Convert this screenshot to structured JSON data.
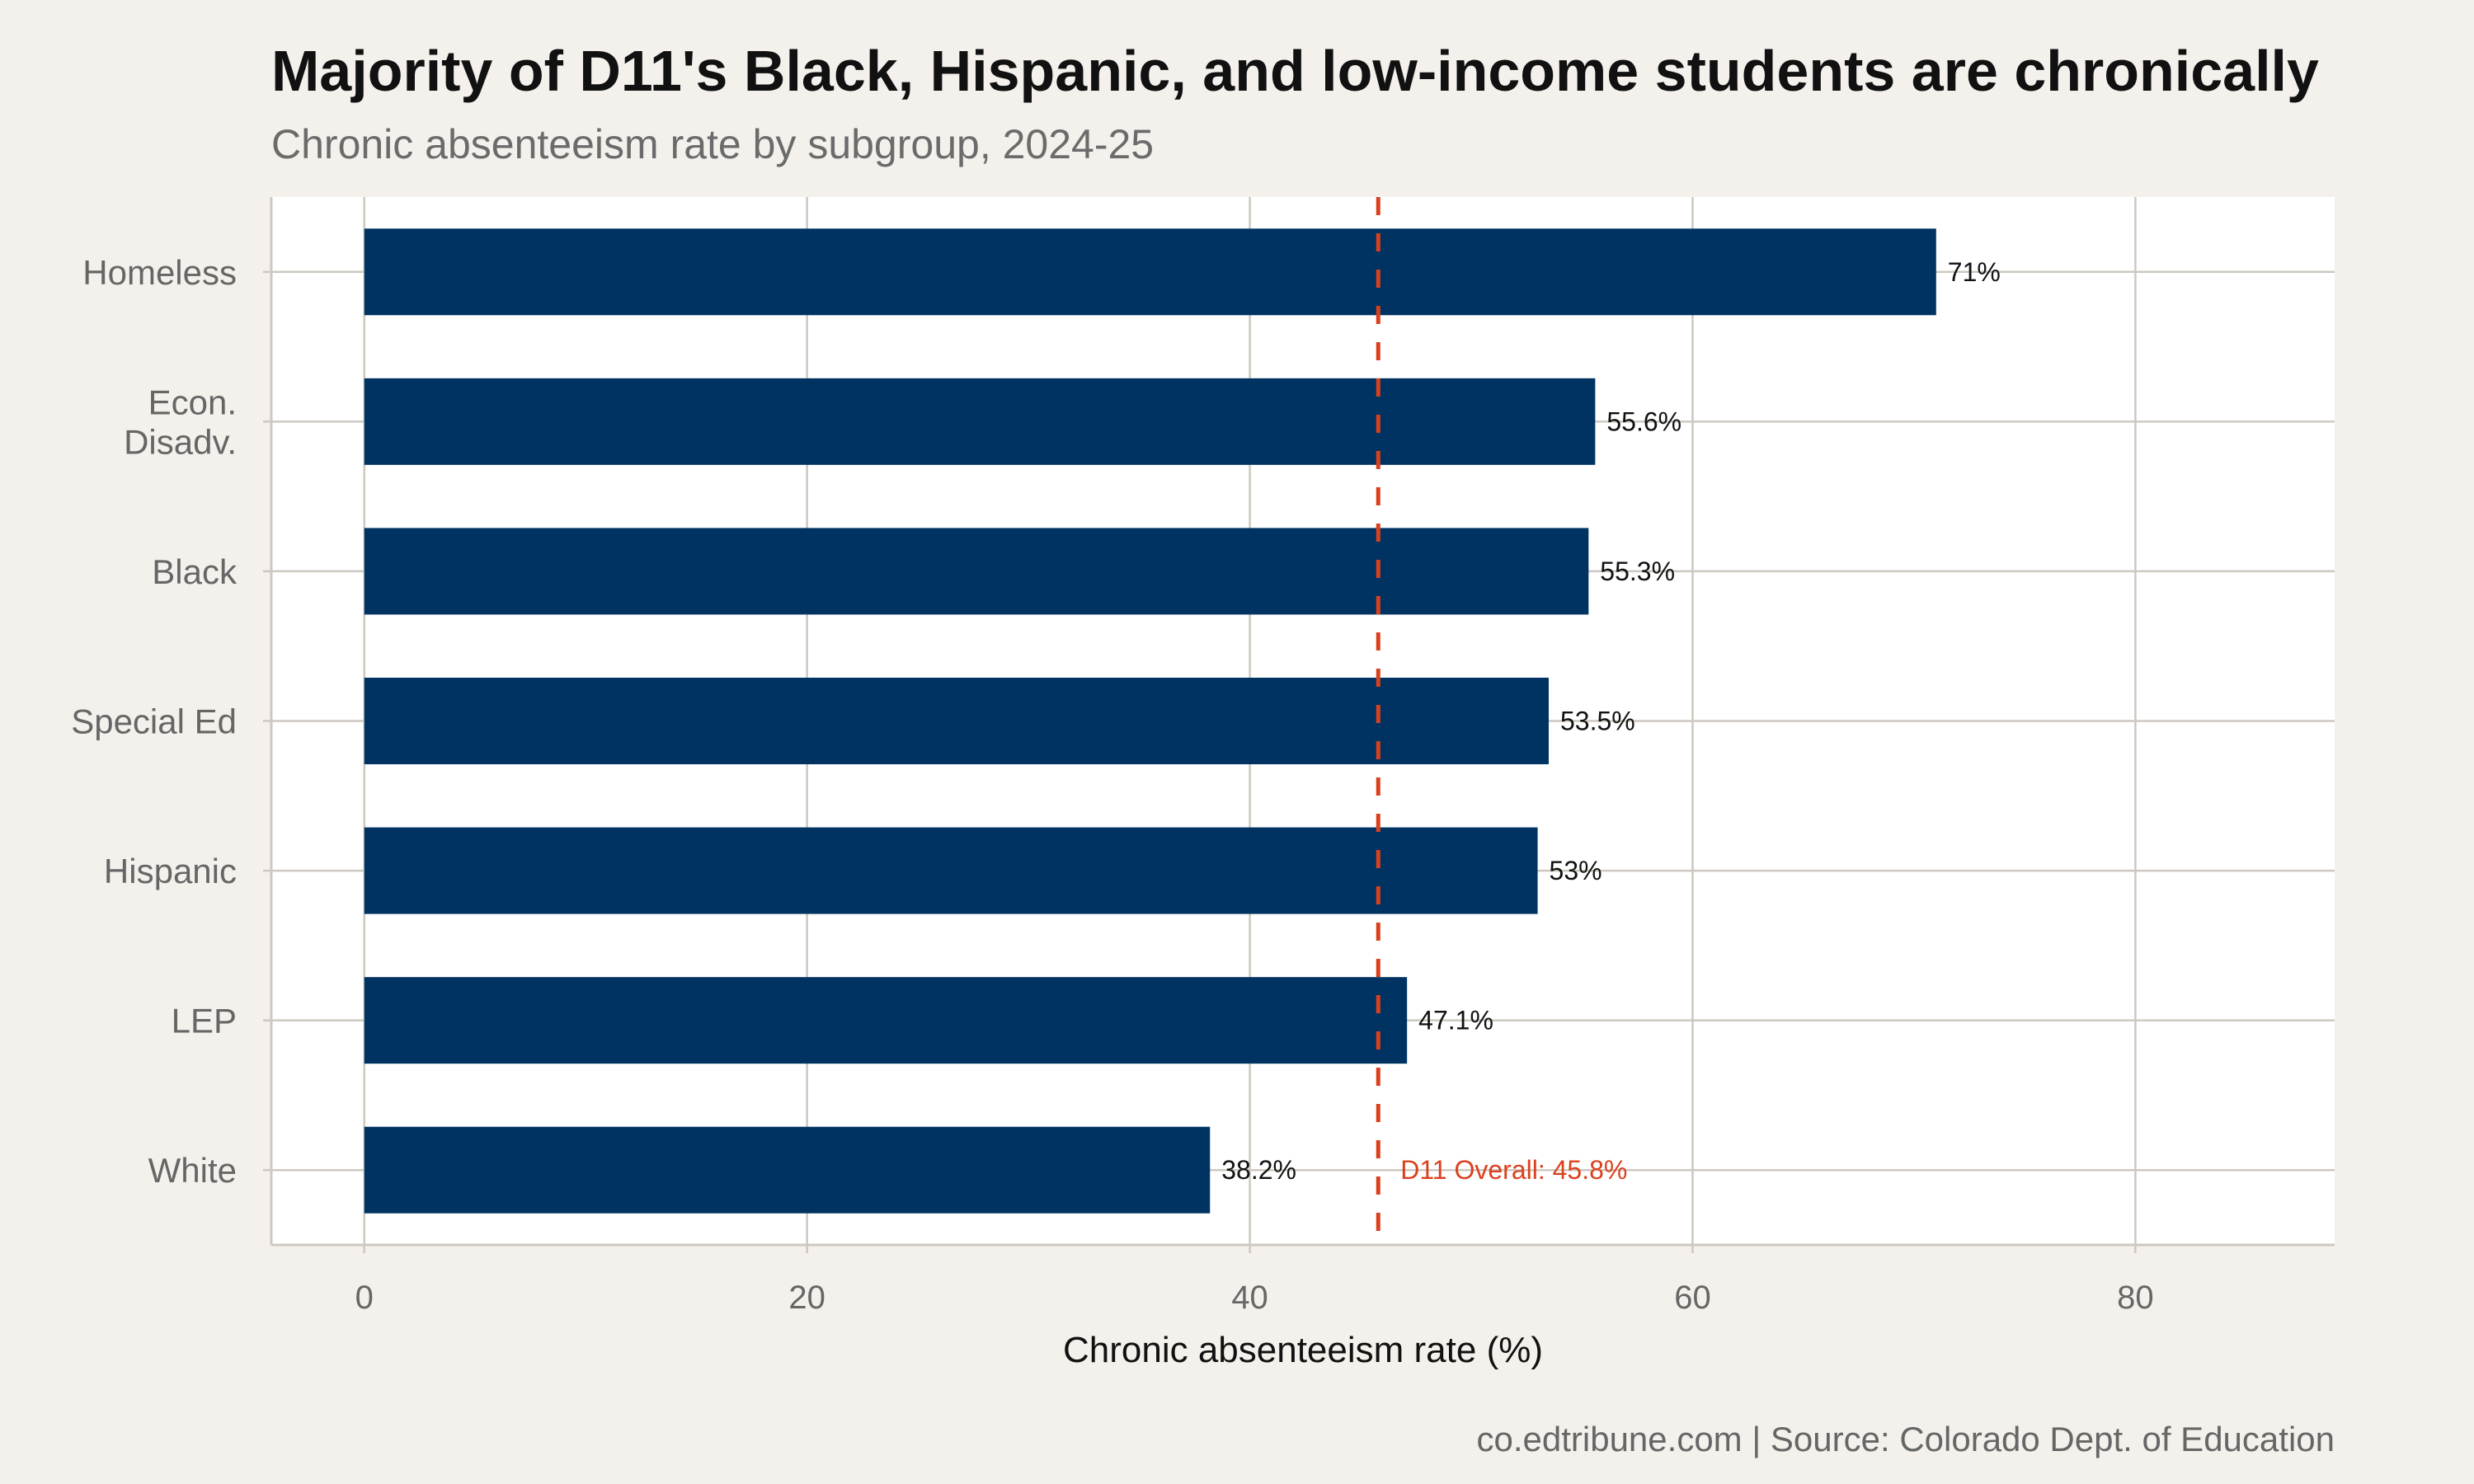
{
  "chart_data": {
    "type": "bar",
    "orientation": "horizontal",
    "title": "Majority of D11's Black, Hispanic, and low-income students are chronically",
    "subtitle": "Chronic absenteeism rate by subgroup, 2024-25",
    "categories": [
      "Homeless",
      "Econ.\nDisadv.",
      "Black",
      "Special Ed",
      "Hispanic",
      "LEP",
      "White"
    ],
    "values": [
      71,
      55.6,
      55.3,
      53.5,
      53,
      47.1,
      38.2
    ],
    "data_labels": [
      "71%",
      "55.6%",
      "55.3%",
      "53.5%",
      "53%",
      "47.1%",
      "38.2%"
    ],
    "xlabel": "Chronic absenteeism rate (%)",
    "ylabel": "",
    "xlim": [
      -4.2,
      89
    ],
    "xticks": [
      0,
      20,
      40,
      60,
      80
    ],
    "grid": true,
    "reference_line": {
      "value": 45.8,
      "label": "D11 Overall: 45.8%",
      "style": "dashed",
      "color": "#d9411e"
    },
    "bar_color": "#003362",
    "caption": "co.edtribune.com | Source: Colorado Dept. of Education"
  }
}
